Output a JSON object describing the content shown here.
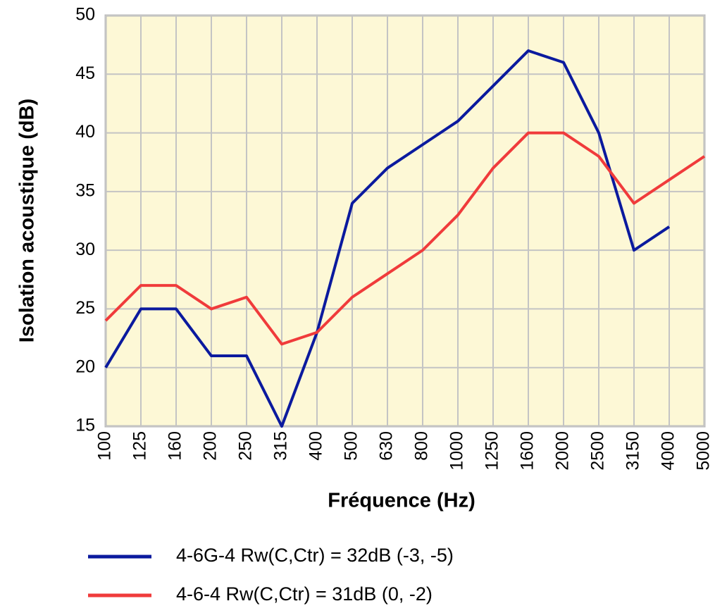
{
  "chart_data": {
    "type": "line",
    "x_label": "Fréquence (Hz)",
    "y_label": "Isolation acoustique (dB)",
    "categories": [
      "100",
      "125",
      "160",
      "200",
      "250",
      "315",
      "400",
      "500",
      "630",
      "800",
      "1000",
      "1250",
      "1600",
      "2000",
      "2500",
      "3150",
      "4000",
      "5000"
    ],
    "series": [
      {
        "name": "4-6G-4 Rw(C,Ctr) = 32dB (-3, -5)",
        "color": "#0b1a9e",
        "values": [
          20,
          25,
          25,
          21,
          21,
          15,
          23,
          34,
          37,
          39,
          41,
          44,
          47,
          46,
          40,
          30,
          32,
          null
        ]
      },
      {
        "name": "4-6-4 Rw(C,Ctr) = 31dB (0, -2)",
        "color": "#f03b3b",
        "values": [
          24,
          27,
          27,
          25,
          26,
          22,
          23,
          26,
          28,
          30,
          33,
          37,
          40,
          40,
          38,
          34,
          36,
          38
        ]
      }
    ],
    "ylim": [
      15,
      50
    ],
    "yticks": [
      15,
      20,
      25,
      30,
      35,
      40,
      45,
      50
    ],
    "grid": true
  }
}
